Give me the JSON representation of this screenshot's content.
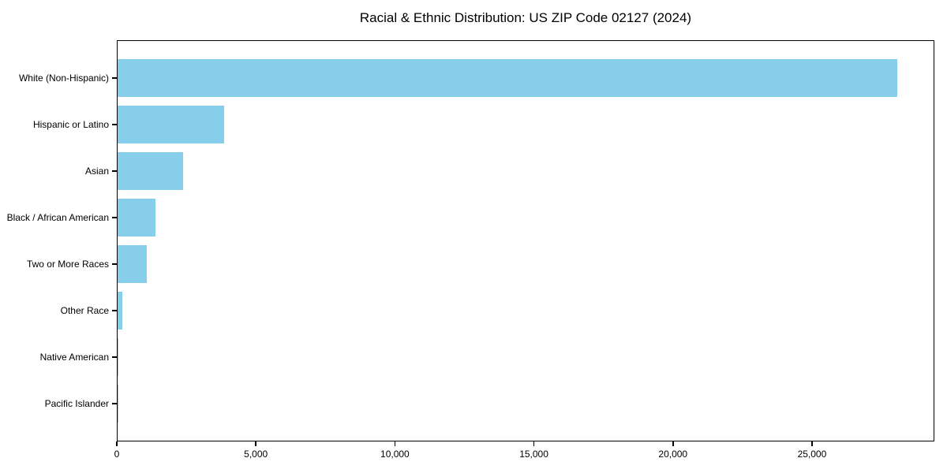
{
  "chart_data": {
    "type": "bar",
    "orientation": "horizontal",
    "title": "Racial & Ethnic Distribution: US ZIP Code 02127 (2024)",
    "categories": [
      "White (Non-Hispanic)",
      "Hispanic or Latino",
      "Asian",
      "Black / African American",
      "Two or More Races",
      "Other Race",
      "Native American",
      "Pacific Islander"
    ],
    "values": [
      28100,
      3840,
      2350,
      1360,
      1050,
      180,
      30,
      10
    ],
    "xlabel": "",
    "ylabel": "",
    "xlim": [
      0,
      29400
    ],
    "xticks": [
      0,
      5000,
      10000,
      15000,
      20000,
      25000
    ],
    "xtick_labels": [
      "0",
      "5,000",
      "10,000",
      "15,000",
      "20,000",
      "25,000"
    ],
    "bar_color": "#87CEEB",
    "axis_color": "#000000",
    "grid": false,
    "legend_position": "none"
  }
}
